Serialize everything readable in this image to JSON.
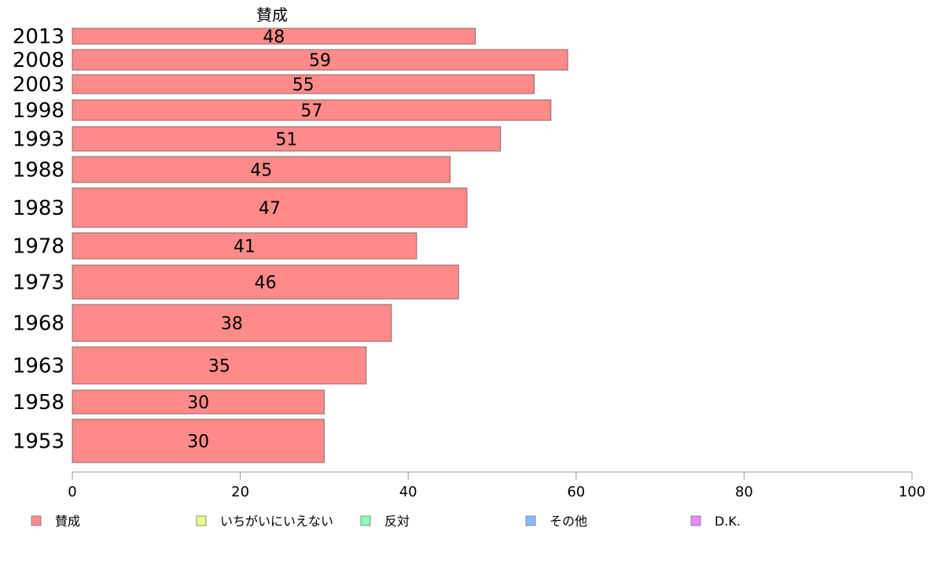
{
  "chart_data": {
    "type": "bar",
    "orientation": "horizontal",
    "series_title": "賛成",
    "categories": [
      "2013",
      "2008",
      "2003",
      "1998",
      "1993",
      "1988",
      "1983",
      "1978",
      "1973",
      "1968",
      "1963",
      "1958",
      "1953"
    ],
    "series": [
      {
        "name": "賛成",
        "color": "#ff8a8a",
        "values": [
          48,
          59,
          55,
          57,
          51,
          45,
          47,
          41,
          46,
          38,
          35,
          30,
          30
        ]
      }
    ],
    "xlim": [
      0,
      100
    ],
    "xticks": [
      0,
      20,
      40,
      60,
      80,
      100
    ],
    "legend": [
      {
        "label": "賛成",
        "color": "#ff8a8a"
      },
      {
        "label": "いちがいにいえない",
        "color": "#eeff88"
      },
      {
        "label": "反対",
        "color": "#88ffbb"
      },
      {
        "label": "その他",
        "color": "#88bbff"
      },
      {
        "label": "D.K.",
        "color": "#ee88ff"
      }
    ],
    "legend_position": "bottom",
    "grid": false
  }
}
